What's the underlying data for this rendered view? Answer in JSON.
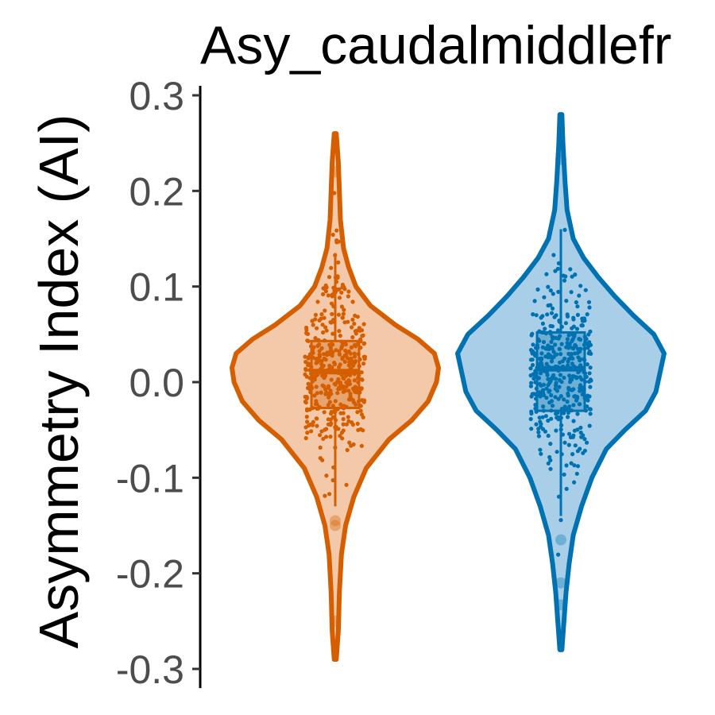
{
  "chart_data": {
    "type": "violin",
    "title": "Asy_caudalmiddlefr",
    "xlabel": "",
    "ylabel": "Asymmetry Index (AI)",
    "ylim": [
      -0.3,
      0.3
    ],
    "yticks": [
      {
        "value": 0.3,
        "label": "0.3"
      },
      {
        "value": 0.2,
        "label": "0.2"
      },
      {
        "value": 0.1,
        "label": "0.1"
      },
      {
        "value": 0.0,
        "label": "0.0"
      },
      {
        "value": -0.1,
        "label": "-0.1"
      },
      {
        "value": -0.2,
        "label": "-0.2"
      },
      {
        "value": -0.3,
        "label": "-0.3"
      }
    ],
    "grid": false,
    "legend": "none",
    "series": [
      {
        "color": "#d55e00",
        "fill": "#f3c9aa",
        "min": -0.29,
        "max": 0.26,
        "q1": -0.027,
        "median": 0.011,
        "q3": 0.043,
        "whisker_low": -0.13,
        "whisker_high": 0.135,
        "density": [
          [
            -0.29,
            0.01
          ],
          [
            -0.26,
            0.03
          ],
          [
            -0.22,
            0.04
          ],
          [
            -0.18,
            0.06
          ],
          [
            -0.15,
            0.1
          ],
          [
            -0.12,
            0.18
          ],
          [
            -0.09,
            0.3
          ],
          [
            -0.06,
            0.52
          ],
          [
            -0.04,
            0.74
          ],
          [
            -0.02,
            0.9
          ],
          [
            0.0,
            0.98
          ],
          [
            0.015,
            1.0
          ],
          [
            0.03,
            0.96
          ],
          [
            0.045,
            0.8
          ],
          [
            0.06,
            0.58
          ],
          [
            0.08,
            0.34
          ],
          [
            0.1,
            0.2
          ],
          [
            0.12,
            0.13
          ],
          [
            0.14,
            0.08
          ],
          [
            0.17,
            0.05
          ],
          [
            0.2,
            0.04
          ],
          [
            0.23,
            0.03
          ],
          [
            0.26,
            0.01
          ]
        ],
        "outliers": [
          0.22,
          -0.145,
          -0.15,
          -0.25
        ]
      },
      {
        "color": "#0072b2",
        "fill": "#a9cfe8",
        "min": -0.28,
        "max": 0.28,
        "q1": -0.03,
        "median": 0.014,
        "q3": 0.052,
        "whisker_low": -0.14,
        "whisker_high": 0.16,
        "density": [
          [
            -0.28,
            0.01
          ],
          [
            -0.25,
            0.03
          ],
          [
            -0.22,
            0.05
          ],
          [
            -0.19,
            0.08
          ],
          [
            -0.16,
            0.12
          ],
          [
            -0.13,
            0.2
          ],
          [
            -0.1,
            0.3
          ],
          [
            -0.07,
            0.44
          ],
          [
            -0.05,
            0.62
          ],
          [
            -0.03,
            0.82
          ],
          [
            -0.01,
            0.92
          ],
          [
            0.01,
            0.96
          ],
          [
            0.03,
            1.0
          ],
          [
            0.05,
            0.9
          ],
          [
            0.07,
            0.7
          ],
          [
            0.09,
            0.52
          ],
          [
            0.11,
            0.36
          ],
          [
            0.13,
            0.22
          ],
          [
            0.15,
            0.12
          ],
          [
            0.18,
            0.06
          ],
          [
            0.21,
            0.04
          ],
          [
            0.25,
            0.02
          ],
          [
            0.28,
            0.01
          ]
        ],
        "outliers": [
          0.233,
          -0.165,
          -0.21,
          -0.233
        ]
      }
    ]
  }
}
